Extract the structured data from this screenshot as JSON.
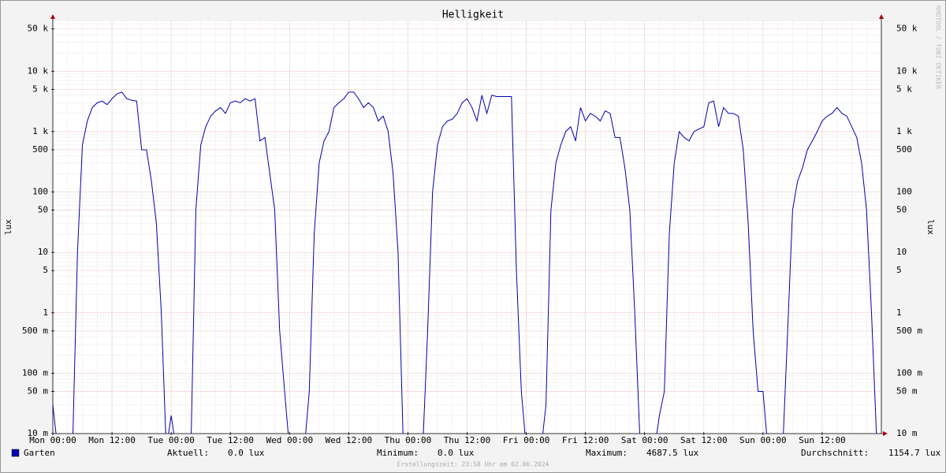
{
  "chart_data": {
    "type": "line",
    "title": "Helligkeit",
    "y_label": "lux",
    "y_scale": "log",
    "grid": true,
    "watermark": "RRDTOOL / TOBI OETIKER",
    "footer": "Erstellungszeit: 23:58 Uhr am 02.06.2024",
    "ylim": [
      0.01,
      67000
    ],
    "yticks": [
      {
        "value": 0.01,
        "label": "10 m"
      },
      {
        "value": 0.05,
        "label": "50 m"
      },
      {
        "value": 0.1,
        "label": "100 m"
      },
      {
        "value": 0.5,
        "label": "500 m"
      },
      1,
      5,
      10,
      50,
      100,
      500,
      {
        "value": 1000,
        "label": "1 k"
      },
      {
        "value": 5000,
        "label": "5 k"
      },
      {
        "value": 10000,
        "label": "10 k"
      },
      {
        "value": 50000,
        "label": "50 k"
      }
    ],
    "xlim": [
      0,
      168
    ],
    "xticks": [
      {
        "value": 0,
        "label": "Mon 00:00"
      },
      {
        "value": 12,
        "label": "Mon 12:00"
      },
      {
        "value": 24,
        "label": "Tue 00:00"
      },
      {
        "value": 36,
        "label": "Tue 12:00"
      },
      {
        "value": 48,
        "label": "Wed 00:00"
      },
      {
        "value": 60,
        "label": "Wed 12:00"
      },
      {
        "value": 72,
        "label": "Thu 00:00"
      },
      {
        "value": 84,
        "label": "Thu 12:00"
      },
      {
        "value": 96,
        "label": "Fri 00:00"
      },
      {
        "value": 108,
        "label": "Fri 12:00"
      },
      {
        "value": 120,
        "label": "Sat 00:00"
      },
      {
        "value": 132,
        "label": "Sat 12:00"
      },
      {
        "value": 144,
        "label": "Sun 00:00"
      },
      {
        "value": 156,
        "label": "Sun 12:00"
      }
    ],
    "x": [
      0,
      1,
      2,
      3,
      4,
      5,
      6,
      7,
      8,
      9,
      10,
      11,
      12,
      13,
      14,
      15,
      16,
      17,
      18,
      19,
      20,
      21,
      22,
      23,
      24,
      25,
      26,
      27,
      28,
      29,
      30,
      31,
      32,
      33,
      34,
      35,
      36,
      37,
      38,
      39,
      40,
      41,
      42,
      43,
      44,
      45,
      46,
      47,
      48,
      49,
      50,
      51,
      52,
      53,
      54,
      55,
      56,
      57,
      58,
      59,
      60,
      61,
      62,
      63,
      64,
      65,
      66,
      67,
      68,
      69,
      70,
      71,
      72,
      73,
      74,
      75,
      76,
      77,
      78,
      79,
      80,
      81,
      82,
      83,
      84,
      85,
      86,
      87,
      88,
      89,
      90,
      91,
      92,
      93,
      94,
      95,
      96,
      97,
      98,
      99,
      100,
      101,
      102,
      103,
      104,
      105,
      106,
      107,
      108,
      109,
      110,
      111,
      112,
      113,
      114,
      115,
      116,
      117,
      118,
      119,
      120,
      121,
      122,
      123,
      124,
      125,
      126,
      127,
      128,
      129,
      130,
      131,
      132,
      133,
      134,
      135,
      136,
      137,
      138,
      139,
      140,
      141,
      142,
      143,
      144,
      145,
      146,
      147,
      148,
      149,
      150,
      151,
      152,
      153,
      154,
      155,
      156,
      157,
      158,
      159,
      160,
      161,
      162,
      163,
      164,
      165,
      166,
      167,
      168
    ],
    "series": [
      {
        "name": "Garten",
        "color": "#0000b0",
        "values": [
          0.03,
          0,
          0,
          0,
          0,
          10,
          600,
          1500,
          2500,
          3000,
          3200,
          2800,
          3500,
          4200,
          4500,
          3500,
          3300,
          3200,
          500,
          500,
          150,
          30,
          1,
          0,
          0.02,
          0,
          0,
          0,
          0,
          50,
          600,
          1200,
          1800,
          2200,
          2500,
          2000,
          3000,
          3200,
          3000,
          3500,
          3200,
          3500,
          700,
          800,
          200,
          50,
          0.5,
          0.05,
          0,
          0,
          0,
          0,
          0.05,
          20,
          300,
          700,
          1000,
          2500,
          3000,
          3500,
          4500,
          4500,
          3500,
          2500,
          3000,
          2500,
          1500,
          1800,
          1000,
          200,
          10,
          0.01,
          0,
          0,
          0,
          0,
          0.5,
          100,
          600,
          1200,
          1500,
          1600,
          2000,
          3000,
          3500,
          2500,
          1500,
          4000,
          2000,
          4000,
          3800,
          3800,
          3800,
          3800,
          5,
          0.05,
          0,
          0,
          0,
          0,
          0.03,
          50,
          300,
          600,
          1000,
          1200,
          700,
          2500,
          1500,
          2000,
          1800,
          1500,
          2200,
          2000,
          800,
          800,
          250,
          50,
          1,
          0.01,
          0,
          0,
          0,
          0.02,
          0.05,
          20,
          300,
          1000,
          800,
          700,
          1000,
          1100,
          1200,
          3000,
          3200,
          1200,
          2500,
          2000,
          2000,
          1800,
          500,
          30,
          0.5,
          0.05,
          0.05,
          0,
          0,
          0,
          0,
          0.5,
          50,
          150,
          250,
          500,
          700,
          1000,
          1500,
          1800,
          2000,
          2500,
          2000,
          1800,
          1200,
          800,
          300,
          50,
          1,
          0.01,
          0
        ]
      }
    ],
    "stats": [
      {
        "label": "Aktuell:",
        "text": "0.0 lux"
      },
      {
        "label": "Minimum:",
        "text": "0.0 lux"
      },
      {
        "label": "Maximum:",
        "text": "4687.5 lux"
      },
      {
        "label": "Durchschnitt:",
        "text": "1154.7 lux"
      }
    ]
  }
}
